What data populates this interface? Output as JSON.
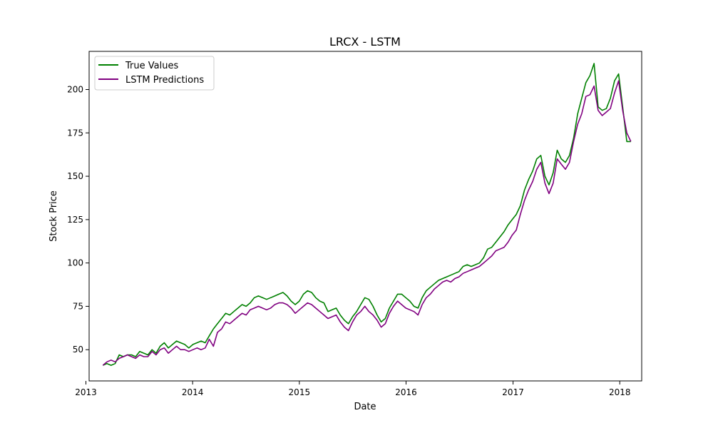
{
  "chart_data": {
    "type": "line",
    "title": "LRCX - LSTM",
    "xlabel": "Date",
    "ylabel": "Stock Price",
    "xlim": [
      "2013-01-12",
      "2018-03-17"
    ],
    "ylim": [
      32,
      222
    ],
    "x_ticks": [
      "2013",
      "2014",
      "2015",
      "2016",
      "2017",
      "2018"
    ],
    "y_ticks": [
      50,
      75,
      100,
      125,
      150,
      175,
      200
    ],
    "grid": false,
    "legend_position": "top-left",
    "x": [
      "2013-02-28",
      "2013-03-14",
      "2013-03-28",
      "2013-04-11",
      "2013-04-25",
      "2013-05-09",
      "2013-05-23",
      "2013-06-06",
      "2013-06-20",
      "2013-07-04",
      "2013-07-18",
      "2013-08-01",
      "2013-08-15",
      "2013-08-29",
      "2013-09-12",
      "2013-09-26",
      "2013-10-10",
      "2013-10-24",
      "2013-11-07",
      "2013-11-21",
      "2013-12-05",
      "2013-12-19",
      "2014-01-02",
      "2014-01-16",
      "2014-01-30",
      "2014-02-13",
      "2014-02-27",
      "2014-03-13",
      "2014-03-27",
      "2014-04-10",
      "2014-04-24",
      "2014-05-08",
      "2014-05-22",
      "2014-06-05",
      "2014-06-19",
      "2014-07-03",
      "2014-07-17",
      "2014-07-31",
      "2014-08-14",
      "2014-08-28",
      "2014-09-11",
      "2014-09-25",
      "2014-10-09",
      "2014-10-23",
      "2014-11-06",
      "2014-11-20",
      "2014-12-04",
      "2014-12-18",
      "2015-01-01",
      "2015-01-15",
      "2015-01-29",
      "2015-02-12",
      "2015-02-26",
      "2015-03-12",
      "2015-03-26",
      "2015-04-09",
      "2015-04-23",
      "2015-05-07",
      "2015-05-21",
      "2015-06-04",
      "2015-06-18",
      "2015-07-02",
      "2015-07-16",
      "2015-07-30",
      "2015-08-13",
      "2015-08-27",
      "2015-09-10",
      "2015-09-24",
      "2015-10-08",
      "2015-10-22",
      "2015-11-05",
      "2015-11-19",
      "2015-12-03",
      "2015-12-17",
      "2015-12-31",
      "2016-01-14",
      "2016-01-28",
      "2016-02-11",
      "2016-02-25",
      "2016-03-10",
      "2016-03-24",
      "2016-04-07",
      "2016-04-21",
      "2016-05-05",
      "2016-05-19",
      "2016-06-02",
      "2016-06-16",
      "2016-06-30",
      "2016-07-14",
      "2016-07-28",
      "2016-08-11",
      "2016-08-25",
      "2016-09-08",
      "2016-09-22",
      "2016-10-06",
      "2016-10-20",
      "2016-11-03",
      "2016-11-17",
      "2016-12-01",
      "2016-12-15",
      "2016-12-29",
      "2017-01-12",
      "2017-01-26",
      "2017-02-09",
      "2017-02-23",
      "2017-03-09",
      "2017-03-23",
      "2017-04-06",
      "2017-04-20",
      "2017-05-04",
      "2017-05-18",
      "2017-06-01",
      "2017-06-15",
      "2017-06-29",
      "2017-07-13",
      "2017-07-27",
      "2017-08-10",
      "2017-08-24",
      "2017-09-07",
      "2017-09-21",
      "2017-10-05",
      "2017-10-19",
      "2017-11-02",
      "2017-11-16",
      "2017-11-30",
      "2017-12-14",
      "2017-12-28",
      "2018-01-11",
      "2018-01-25",
      "2018-02-08"
    ],
    "series": [
      {
        "name": "True Values",
        "color": "#008000",
        "values": [
          41,
          42,
          41,
          42,
          47,
          46,
          47,
          47,
          46,
          49,
          48,
          47,
          50,
          48,
          52,
          54,
          51,
          53,
          55,
          54,
          53,
          51,
          53,
          54,
          55,
          54,
          58,
          62,
          65,
          68,
          71,
          70,
          72,
          74,
          76,
          75,
          77,
          80,
          81,
          80,
          79,
          80,
          81,
          82,
          83,
          81,
          78,
          76,
          78,
          82,
          84,
          83,
          80,
          78,
          77,
          72,
          73,
          74,
          70,
          67,
          65,
          69,
          72,
          76,
          80,
          79,
          75,
          70,
          66,
          68,
          74,
          78,
          82,
          82,
          80,
          78,
          75,
          74,
          80,
          84,
          86,
          88,
          90,
          91,
          92,
          93,
          94,
          95,
          98,
          99,
          98,
          99,
          100,
          103,
          108,
          109,
          112,
          115,
          118,
          122,
          125,
          128,
          133,
          142,
          148,
          153,
          160,
          162,
          150,
          145,
          152,
          165,
          160,
          158,
          162,
          172,
          186,
          195,
          204,
          208,
          215,
          190,
          188,
          189,
          195,
          205,
          209,
          190,
          170,
          170
        ],
        "true_color": "#008000"
      },
      {
        "name": "LSTM Predictions",
        "color": "#800080",
        "values": [
          41,
          43,
          44,
          43,
          45,
          46,
          47,
          46,
          45,
          47,
          46,
          46,
          49,
          47,
          50,
          51,
          48,
          50,
          52,
          50,
          50,
          49,
          50,
          51,
          50,
          51,
          56,
          52,
          60,
          62,
          66,
          65,
          67,
          69,
          71,
          70,
          73,
          74,
          75,
          74,
          73,
          74,
          76,
          77,
          77,
          76,
          74,
          71,
          73,
          75,
          77,
          76,
          74,
          72,
          70,
          68,
          69,
          70,
          66,
          63,
          61,
          66,
          70,
          72,
          75,
          72,
          70,
          67,
          63,
          65,
          71,
          75,
          78,
          76,
          74,
          73,
          72,
          70,
          76,
          80,
          82,
          85,
          87,
          89,
          90,
          89,
          91,
          92,
          94,
          95,
          96,
          97,
          98,
          100,
          102,
          104,
          107,
          108,
          109,
          112,
          116,
          119,
          128,
          136,
          142,
          147,
          154,
          158,
          146,
          140,
          146,
          160,
          157,
          154,
          158,
          170,
          180,
          186,
          196,
          197,
          202,
          188,
          185,
          187,
          189,
          198,
          205,
          188,
          175,
          170
        ]
      }
    ],
    "legend": [
      "True Values",
      "LSTM Predictions"
    ]
  }
}
